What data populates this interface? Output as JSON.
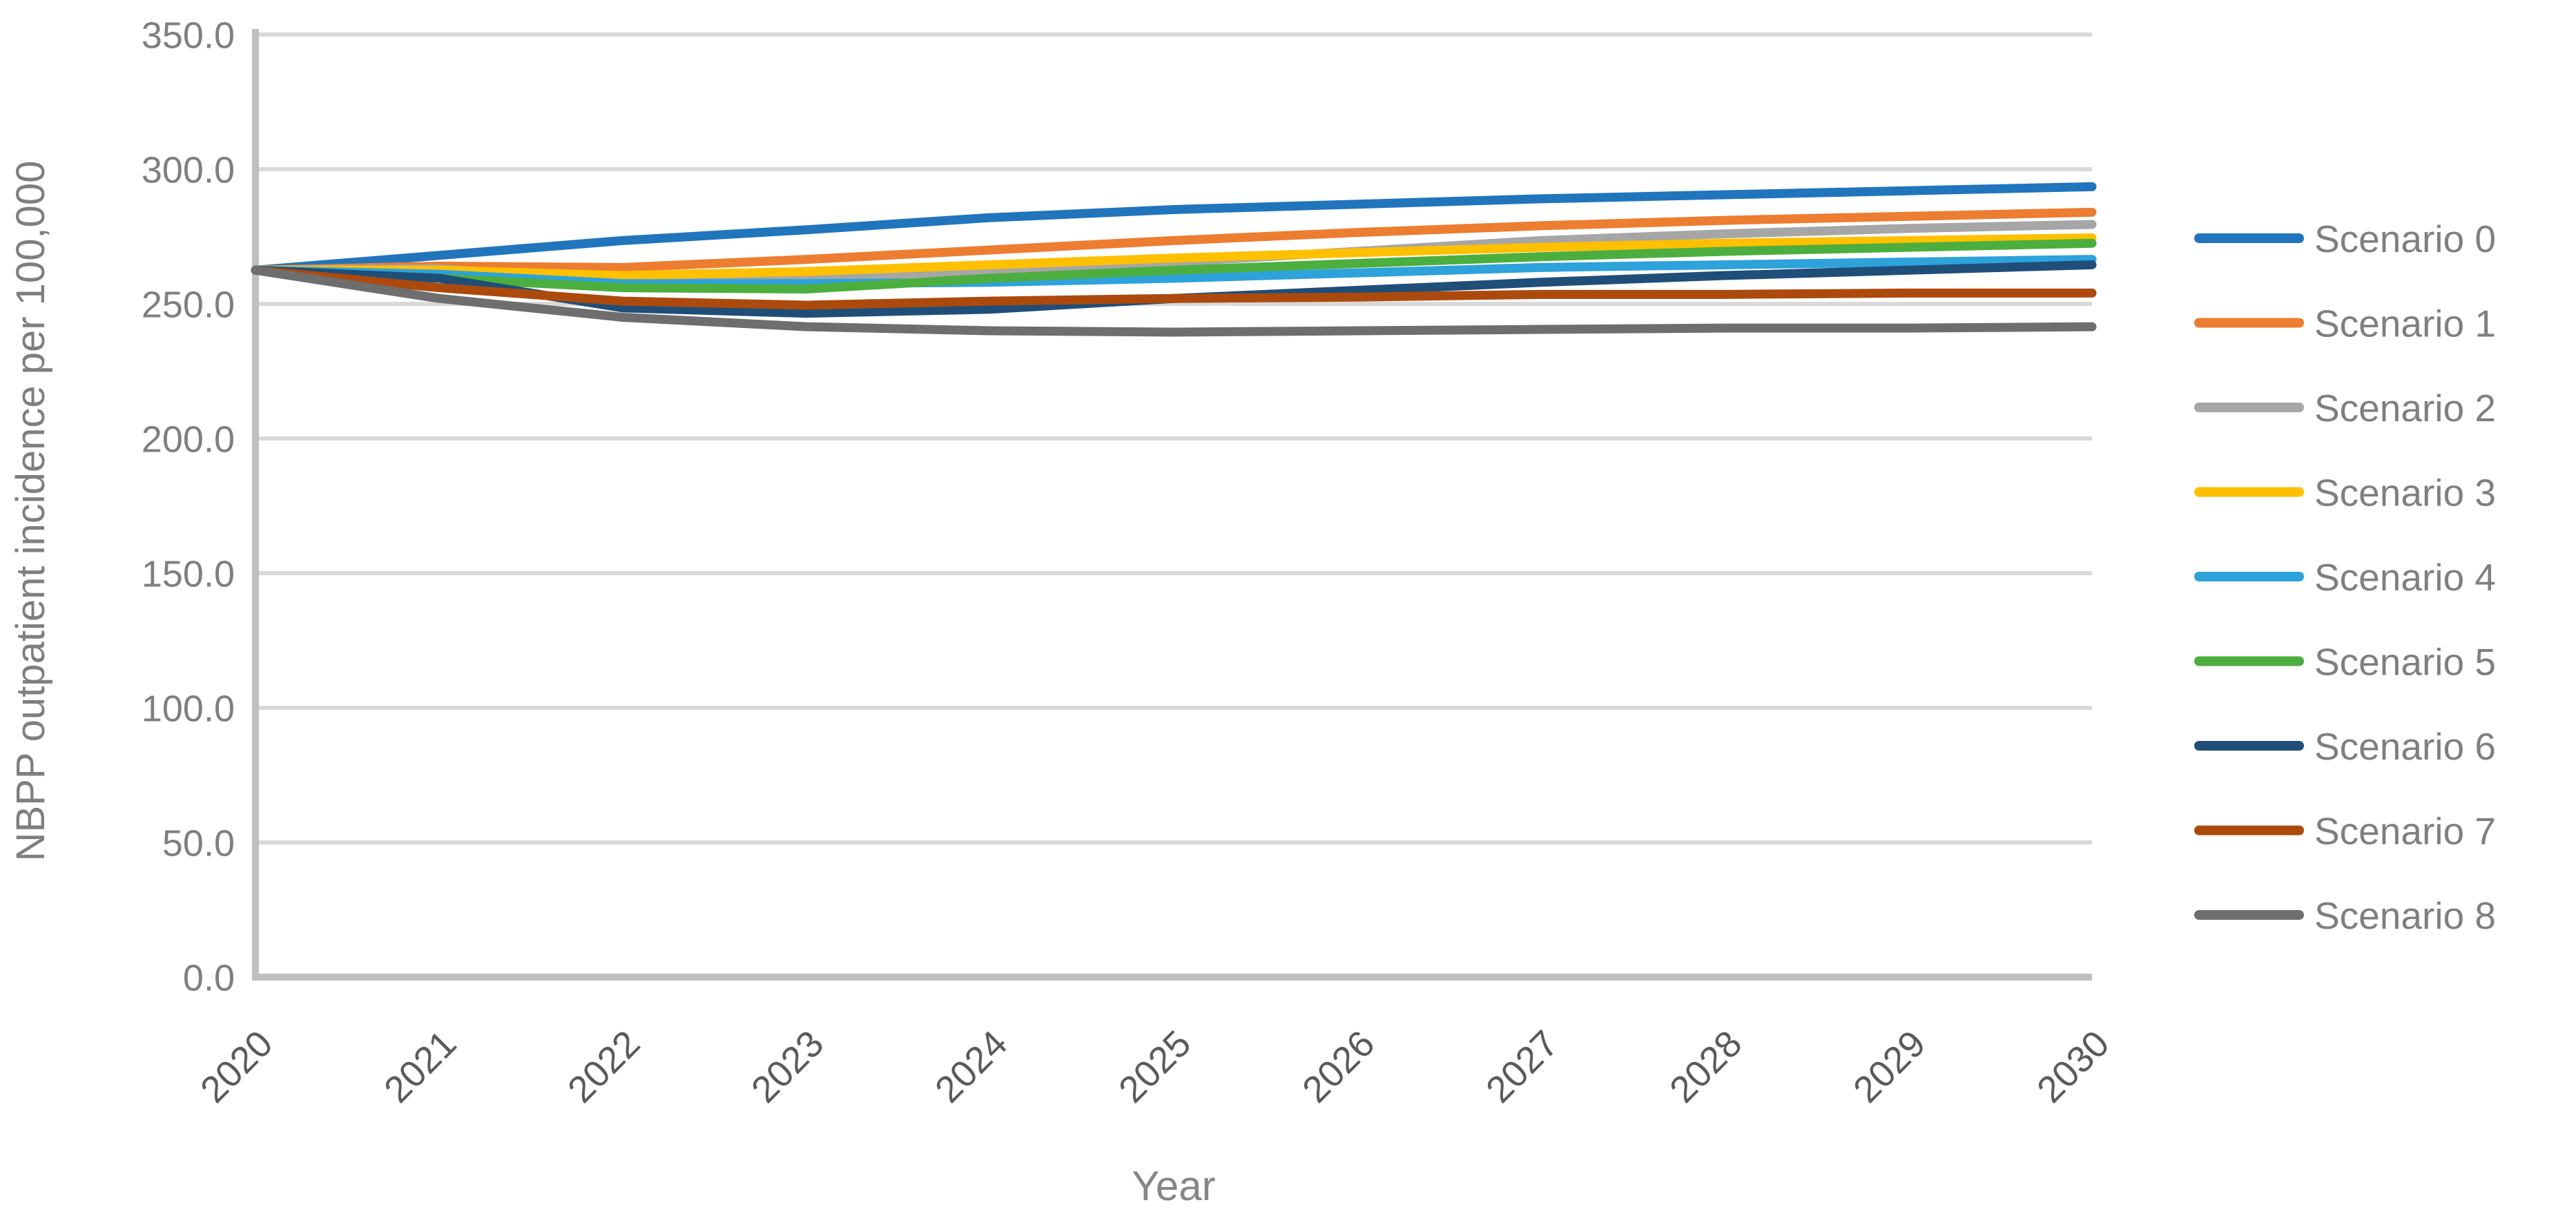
{
  "figure": {
    "background": "#FFFFFF"
  },
  "palette": {
    "gridline": "#D9D9D9",
    "axis_line": "#BFBFBF",
    "y_tick_text": "#7F7F7F",
    "x_tick_text": "#5A5A5A",
    "y_axis_title_text": "#7F7F7F",
    "x_axis_title_text": "#868686",
    "legend_text": "#7F7F7F"
  },
  "chart_data": {
    "type": "line",
    "title": "",
    "xlabel": "Year",
    "ylabel": "NBPP outpatient incidence per 100,000",
    "x": [
      2020,
      2021,
      2022,
      2023,
      2024,
      2025,
      2026,
      2027,
      2028,
      2029,
      2030
    ],
    "x_tick_labels": [
      "2020",
      "2021",
      "2022",
      "2023",
      "2024",
      "2025",
      "2026",
      "2027",
      "2028",
      "2029",
      "2030"
    ],
    "y_ticks": [
      0,
      50,
      100,
      150,
      200,
      250,
      300,
      350
    ],
    "y_tick_labels": [
      "0.0",
      "50.0",
      "100.0",
      "150.0",
      "200.0",
      "250.0",
      "300.0",
      "350.0"
    ],
    "ylim": [
      0,
      350
    ],
    "grid": "horizontal",
    "legend_position": "right",
    "series": [
      {
        "name": "Scenario 0",
        "color": "#2175BC",
        "values": [
          262.5,
          268.0,
          273.5,
          277.5,
          282.0,
          285.0,
          287.0,
          289.0,
          290.5,
          292.0,
          293.5
        ]
      },
      {
        "name": "Scenario 1",
        "color": "#ED7D31",
        "values": [
          262.5,
          264.0,
          263.5,
          266.5,
          270.0,
          273.5,
          276.5,
          279.0,
          281.0,
          282.5,
          284.0
        ]
      },
      {
        "name": "Scenario 2",
        "color": "#A6A6A6",
        "values": [
          262.5,
          263.0,
          258.5,
          259.5,
          262.5,
          265.5,
          269.5,
          273.5,
          276.0,
          278.0,
          279.5
        ]
      },
      {
        "name": "Scenario 3",
        "color": "#FFC000",
        "values": [
          262.5,
          262.5,
          260.5,
          262.0,
          264.5,
          267.0,
          269.0,
          271.0,
          272.5,
          273.5,
          274.5
        ]
      },
      {
        "name": "Scenario 4",
        "color": "#2DA2DB",
        "values": [
          262.5,
          261.0,
          257.5,
          257.5,
          258.0,
          259.5,
          261.5,
          263.5,
          264.5,
          265.5,
          266.5
        ]
      },
      {
        "name": "Scenario 5",
        "color": "#4CAE3E",
        "values": [
          262.5,
          259.5,
          256.0,
          255.5,
          259.5,
          262.5,
          265.0,
          267.5,
          269.5,
          271.0,
          272.5
        ]
      },
      {
        "name": "Scenario 6",
        "color": "#1F4E79",
        "values": [
          262.5,
          259.5,
          248.5,
          246.5,
          248.0,
          252.0,
          255.0,
          258.0,
          260.5,
          262.5,
          264.5
        ]
      },
      {
        "name": "Scenario 7",
        "color": "#AC4A0D",
        "values": [
          262.5,
          256.0,
          251.0,
          249.5,
          251.0,
          252.0,
          252.5,
          253.5,
          253.5,
          254.0,
          254.0
        ]
      },
      {
        "name": "Scenario 8",
        "color": "#6E6E6E",
        "values": [
          262.5,
          252.0,
          245.0,
          241.5,
          240.0,
          239.5,
          240.0,
          240.5,
          241.0,
          241.0,
          241.5
        ]
      }
    ]
  }
}
